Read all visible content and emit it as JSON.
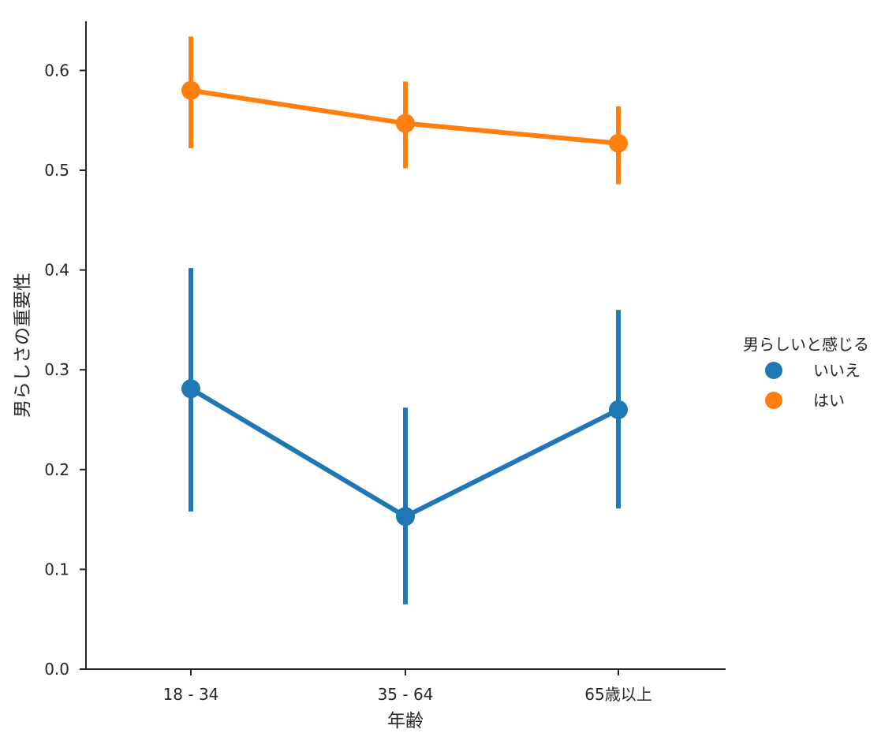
{
  "chart_data": {
    "type": "line",
    "title": "",
    "xlabel": "年齢",
    "ylabel": "男らしさの重要性",
    "categories": [
      "18 - 34",
      "35 - 64",
      "65歳以上"
    ],
    "ylim": [
      0.0,
      0.65
    ],
    "yticks": [
      0.0,
      0.1,
      0.2,
      0.3,
      0.4,
      0.5,
      0.6
    ],
    "ytick_labels": [
      "0.0",
      "0.1",
      "0.2",
      "0.3",
      "0.4",
      "0.5",
      "0.6"
    ],
    "grid": false,
    "legend": {
      "title": "男らしいと感じる",
      "placement": "right"
    },
    "series": [
      {
        "name": "いいえ",
        "color": "#1f77b4",
        "values": [
          0.281,
          0.153,
          0.26
        ],
        "ci_low": [
          0.158,
          0.065,
          0.161
        ],
        "ci_high": [
          0.402,
          0.262,
          0.36
        ]
      },
      {
        "name": "はい",
        "color": "#ff7f0e",
        "values": [
          0.58,
          0.547,
          0.527
        ],
        "ci_low": [
          0.522,
          0.502,
          0.486
        ],
        "ci_high": [
          0.634,
          0.589,
          0.564
        ]
      }
    ]
  }
}
